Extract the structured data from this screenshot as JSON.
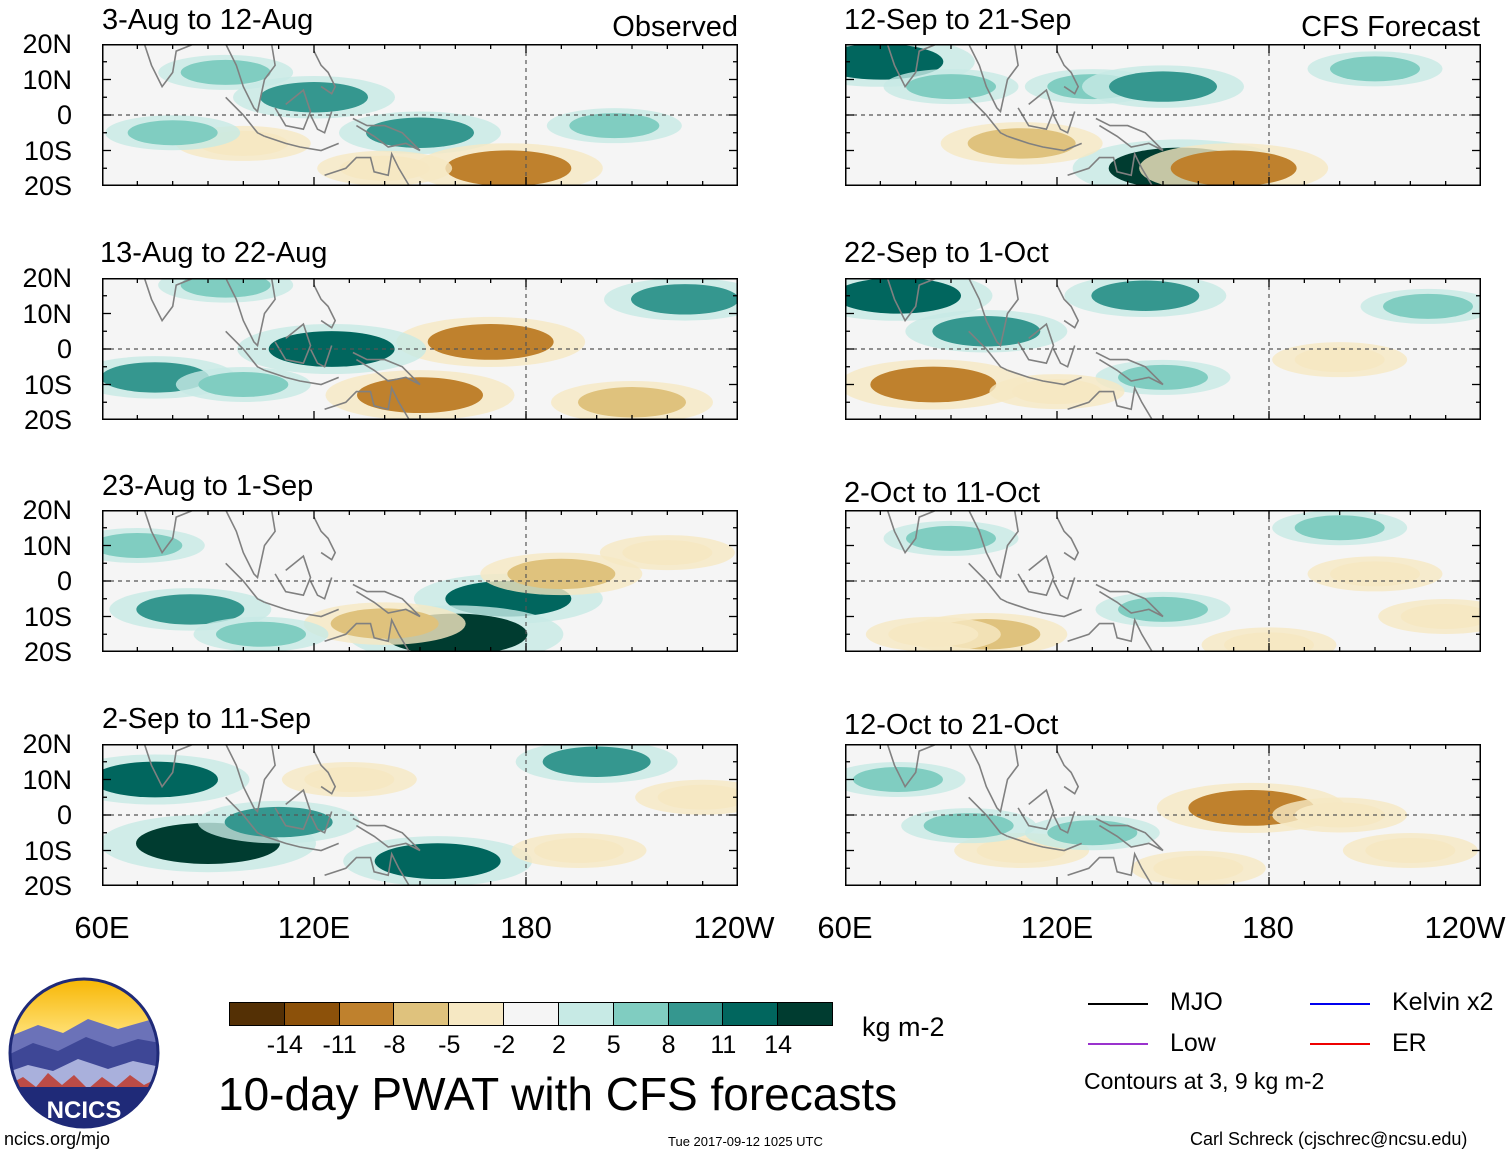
{
  "chart_data": {
    "type": "heatmap",
    "title": "10-day PWAT with CFS forecasts",
    "units": "kg m-2",
    "observed_label": "Observed",
    "forecast_label": "CFS Forecast",
    "lat_ticks": [
      "20N",
      "10N",
      "0",
      "10S",
      "20S"
    ],
    "lon_ticks": [
      "60E",
      "120E",
      "180",
      "120W"
    ],
    "lat_range": [
      -20,
      20
    ],
    "lon_range": [
      60,
      240
    ],
    "panels": [
      {
        "title": "3-Aug to 12-Aug",
        "type": "observed",
        "anomalies": [
          {
            "lon": 120,
            "lat": 5,
            "value": 8
          },
          {
            "lon": 150,
            "lat": -5,
            "value": 8
          },
          {
            "lon": 175,
            "lat": -15,
            "value": -11
          },
          {
            "lon": 100,
            "lat": -8,
            "value": -5
          },
          {
            "lon": 80,
            "lat": -5,
            "value": 5
          },
          {
            "lon": 205,
            "lat": -3,
            "value": 5
          },
          {
            "lon": 140,
            "lat": -15,
            "value": -5
          },
          {
            "lon": 95,
            "lat": 12,
            "value": 5
          }
        ]
      },
      {
        "title": "13-Aug to 22-Aug",
        "type": "observed",
        "anomalies": [
          {
            "lon": 170,
            "lat": 2,
            "value": -11
          },
          {
            "lon": 150,
            "lat": -13,
            "value": -11
          },
          {
            "lon": 125,
            "lat": 0,
            "value": 11
          },
          {
            "lon": 75,
            "lat": -8,
            "value": 8
          },
          {
            "lon": 100,
            "lat": -10,
            "value": 5
          },
          {
            "lon": 225,
            "lat": 14,
            "value": 8
          },
          {
            "lon": 210,
            "lat": -15,
            "value": -8
          },
          {
            "lon": 95,
            "lat": 18,
            "value": 5
          }
        ]
      },
      {
        "title": "23-Aug to 1-Sep",
        "type": "observed",
        "anomalies": [
          {
            "lon": 175,
            "lat": -5,
            "value": 11
          },
          {
            "lon": 160,
            "lat": -15,
            "value": 14
          },
          {
            "lon": 140,
            "lat": -12,
            "value": -8
          },
          {
            "lon": 85,
            "lat": -8,
            "value": 8
          },
          {
            "lon": 70,
            "lat": 10,
            "value": 5
          },
          {
            "lon": 190,
            "lat": 2,
            "value": -8
          },
          {
            "lon": 220,
            "lat": 8,
            "value": -5
          },
          {
            "lon": 105,
            "lat": -15,
            "value": 5
          }
        ]
      },
      {
        "title": "2-Sep to 11-Sep",
        "type": "observed",
        "anomalies": [
          {
            "lon": 75,
            "lat": 10,
            "value": 11
          },
          {
            "lon": 90,
            "lat": -8,
            "value": 14
          },
          {
            "lon": 110,
            "lat": -2,
            "value": 8
          },
          {
            "lon": 155,
            "lat": -13,
            "value": 11
          },
          {
            "lon": 200,
            "lat": 15,
            "value": 8
          },
          {
            "lon": 130,
            "lat": 10,
            "value": -5
          },
          {
            "lon": 195,
            "lat": -10,
            "value": -5
          },
          {
            "lon": 230,
            "lat": 5,
            "value": -5
          }
        ]
      },
      {
        "title": "12-Sep to 21-Sep",
        "type": "forecast",
        "anomalies": [
          {
            "lon": 70,
            "lat": 15,
            "value": 11
          },
          {
            "lon": 155,
            "lat": -15,
            "value": 14
          },
          {
            "lon": 110,
            "lat": -8,
            "value": -8
          },
          {
            "lon": 170,
            "lat": -15,
            "value": -11
          },
          {
            "lon": 130,
            "lat": 8,
            "value": 5
          },
          {
            "lon": 210,
            "lat": 13,
            "value": 5
          },
          {
            "lon": 90,
            "lat": 8,
            "value": 5
          },
          {
            "lon": 150,
            "lat": 8,
            "value": 8
          }
        ]
      },
      {
        "title": "22-Sep to 1-Oct",
        "type": "forecast",
        "anomalies": [
          {
            "lon": 85,
            "lat": -10,
            "value": -11
          },
          {
            "lon": 75,
            "lat": 15,
            "value": 11
          },
          {
            "lon": 100,
            "lat": 5,
            "value": 8
          },
          {
            "lon": 145,
            "lat": 15,
            "value": 8
          },
          {
            "lon": 200,
            "lat": -3,
            "value": -5
          },
          {
            "lon": 150,
            "lat": -8,
            "value": 5
          },
          {
            "lon": 120,
            "lat": -12,
            "value": -5
          },
          {
            "lon": 225,
            "lat": 12,
            "value": 5
          }
        ]
      },
      {
        "title": "2-Oct to 11-Oct",
        "type": "forecast",
        "anomalies": [
          {
            "lon": 100,
            "lat": -15,
            "value": -8
          },
          {
            "lon": 85,
            "lat": -15,
            "value": -5
          },
          {
            "lon": 150,
            "lat": -8,
            "value": 5
          },
          {
            "lon": 90,
            "lat": 12,
            "value": 5
          },
          {
            "lon": 210,
            "lat": 2,
            "value": -5
          },
          {
            "lon": 180,
            "lat": -18,
            "value": -5
          },
          {
            "lon": 230,
            "lat": -10,
            "value": -5
          },
          {
            "lon": 200,
            "lat": 15,
            "value": 5
          }
        ]
      },
      {
        "title": "12-Oct to 21-Oct",
        "type": "forecast",
        "anomalies": [
          {
            "lon": 175,
            "lat": 2,
            "value": -11
          },
          {
            "lon": 200,
            "lat": 0,
            "value": -5
          },
          {
            "lon": 75,
            "lat": 10,
            "value": 5
          },
          {
            "lon": 110,
            "lat": -10,
            "value": -5
          },
          {
            "lon": 160,
            "lat": -15,
            "value": -5
          },
          {
            "lon": 130,
            "lat": -5,
            "value": 5
          },
          {
            "lon": 220,
            "lat": -10,
            "value": -5
          },
          {
            "lon": 95,
            "lat": -3,
            "value": 5
          }
        ]
      }
    ],
    "colorbar": {
      "ticks": [
        "-14",
        "-11",
        "-8",
        "-5",
        "-2",
        "2",
        "5",
        "8",
        "11",
        "14"
      ],
      "colors": [
        "#543005",
        "#8c510a",
        "#bf812d",
        "#dfc27d",
        "#f6e8c3",
        "#f5f5f5",
        "#c7eae5",
        "#80cdc1",
        "#35978f",
        "#01665e",
        "#003c30"
      ]
    },
    "legend": [
      {
        "label": "MJO",
        "color": "#000000"
      },
      {
        "label": "Low",
        "color": "#9a32cd"
      },
      {
        "label": "Kelvin x2",
        "color": "#0000ee"
      },
      {
        "label": "ER",
        "color": "#ee0000"
      }
    ],
    "contour_note": "Contours at 3, 9 kg m-2"
  },
  "logo": {
    "text": "NCICS"
  },
  "footer": {
    "url": "ncics.org/mjo",
    "timestamp": "Tue 2017-09-12 1025 UTC",
    "author": "Carl Schreck (cjschrec@ncsu.edu)"
  }
}
